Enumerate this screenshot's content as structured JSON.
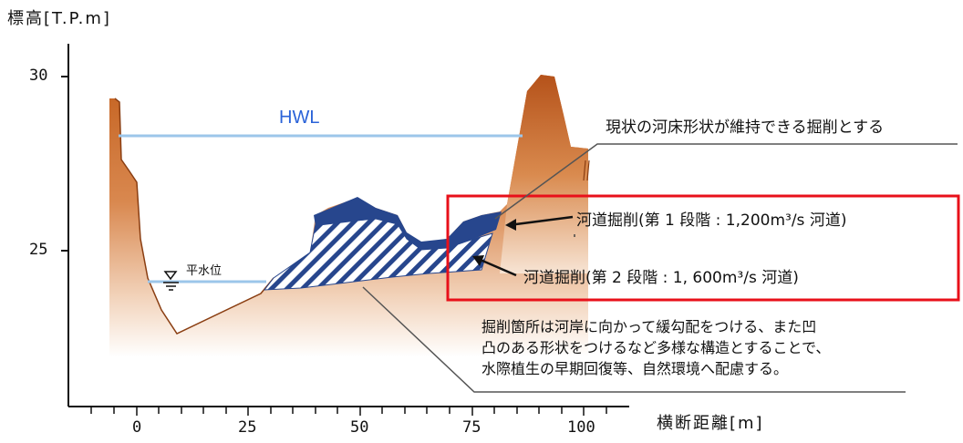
{
  "axes": {
    "y_label": "標高[T.P.m]",
    "x_label": "横断距離[m]",
    "y_ticks": [
      "30",
      "25"
    ],
    "x_ticks": [
      "0",
      "25",
      "50",
      "75",
      "100"
    ]
  },
  "labels": {
    "hwl": "HWL",
    "normal_water_level": "平水位"
  },
  "annotations": {
    "maintain_riverbed": "現状の河床形状が維持できる掘削とする",
    "stage1": "河道掘削(第 1 段階 : 1,200m³/s 河道)",
    "stage2": "河道掘削(第 2 段階 : 1, 600m³/s 河道)",
    "note_lines": [
      "掘削箇所は河岸に向かって緩勾配をつける、また凹",
      "凸のある形状をつけるなど多様な構造とすることで、",
      "水際植生の早期回復等、自然環境へ配慮する。"
    ]
  },
  "colors": {
    "ground_top": "#c86a2c",
    "ground_bottom": "#ffffff",
    "hwl_line": "#9cc6ea",
    "stage1_fill": "#27468d",
    "stage2_hatch": "#27468d",
    "highlight_box": "#e8101a",
    "hwl_text": "#2b63d8"
  }
}
